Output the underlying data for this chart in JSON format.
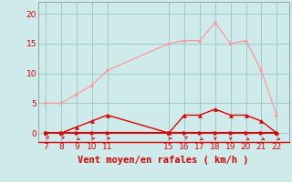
{
  "hours": [
    7,
    8,
    9,
    10,
    11,
    15,
    16,
    17,
    18,
    19,
    20,
    21,
    22
  ],
  "wind_avg": [
    0,
    0,
    1,
    2,
    3,
    0,
    3,
    3,
    4,
    3,
    3,
    2,
    0
  ],
  "wind_gust": [
    5,
    5,
    6.5,
    8,
    10.5,
    15,
    15.5,
    15.5,
    18.5,
    15,
    15.5,
    10.5,
    3
  ],
  "wind_min": [
    0,
    0,
    0,
    0,
    0,
    0,
    0,
    0,
    0,
    0,
    0,
    0,
    0
  ],
  "bg_color": "#ceeaea",
  "grid_color": "#a0c8c8",
  "line_avg_color": "#dd0000",
  "line_gust_color": "#ff9999",
  "line_min_color": "#dd0000",
  "xlabel": "Vent moyen/en rafales ( km/h )",
  "yticks": [
    0,
    5,
    10,
    15,
    20
  ],
  "xticks": [
    7,
    8,
    9,
    10,
    11,
    15,
    16,
    17,
    18,
    19,
    20,
    21,
    22
  ],
  "ylim": [
    -1.5,
    22
  ],
  "xlim": [
    6.5,
    22.8
  ],
  "marker_size": 2.5,
  "tick_fontsize": 6.5,
  "xlabel_fontsize": 7.5
}
